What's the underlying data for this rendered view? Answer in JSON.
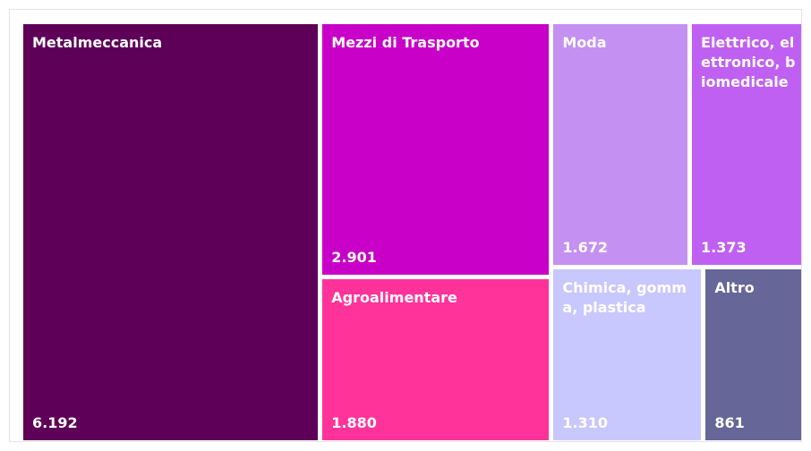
{
  "chart_data": {
    "type": "treemap",
    "categories": [
      "Metalmeccanica",
      "Mezzi di Trasporto",
      "Moda",
      "Elettrico, elettronico, biomedicale",
      "Agroalimentare",
      "Chimica, gomma, plastica",
      "Altro"
    ],
    "values": [
      6192,
      2901,
      1672,
      1373,
      1880,
      1310,
      861
    ],
    "value_labels": [
      "6.192",
      "2.901",
      "1.672",
      "1.373",
      "1.880",
      "1.310",
      "861"
    ],
    "colors": [
      "#5e0058",
      "#c800c8",
      "#c490f2",
      "#c060f2",
      "#ff3399",
      "#c8c8ff",
      "#666699"
    ]
  }
}
